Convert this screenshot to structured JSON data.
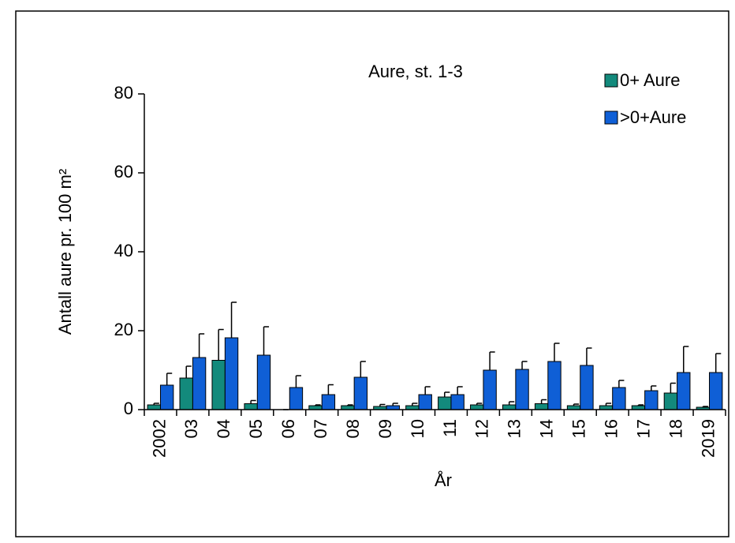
{
  "chart_data": {
    "type": "bar",
    "title": "Aure, st. 1-3",
    "x_label": "År",
    "y_label": "Antall aure pr. 100 m²",
    "categories": [
      "2002",
      "03",
      "04",
      "05",
      "06",
      "07",
      "08",
      "09",
      "10",
      "11",
      "12",
      "13",
      "14",
      "15",
      "16",
      "17",
      "18",
      "2019"
    ],
    "series": [
      {
        "name": "0+ Aure",
        "color": "#138a7c",
        "values": [
          1.2,
          8,
          12.5,
          1.5,
          0,
          1,
          1,
          0.8,
          1,
          3.2,
          1.2,
          1.2,
          1.5,
          1,
          1,
          1,
          4.2,
          0.6
        ],
        "errors": [
          0.4,
          3,
          7.8,
          0.8,
          0,
          0.2,
          0.2,
          0.5,
          0.6,
          1.2,
          0.4,
          0.8,
          1,
          0.4,
          0.6,
          0.2,
          2.5,
          0.2
        ]
      },
      {
        "name": ">0+Aure",
        "color": "#0f5fd6",
        "values": [
          6.2,
          13.2,
          18.2,
          13.8,
          5.6,
          3.8,
          8.2,
          1,
          3.8,
          3.8,
          10,
          10.2,
          12.2,
          11.2,
          5.6,
          4.8,
          9.4,
          9.4
        ],
        "errors": [
          3,
          6,
          9,
          7.2,
          3,
          2.5,
          4,
          0.6,
          2,
          2,
          4.6,
          2,
          4.6,
          4.4,
          1.8,
          1.2,
          6.6,
          4.8
        ]
      }
    ],
    "ylim": [
      0,
      80
    ],
    "yticks": [
      0,
      20,
      40,
      60,
      80
    ],
    "legend": "top-right"
  }
}
